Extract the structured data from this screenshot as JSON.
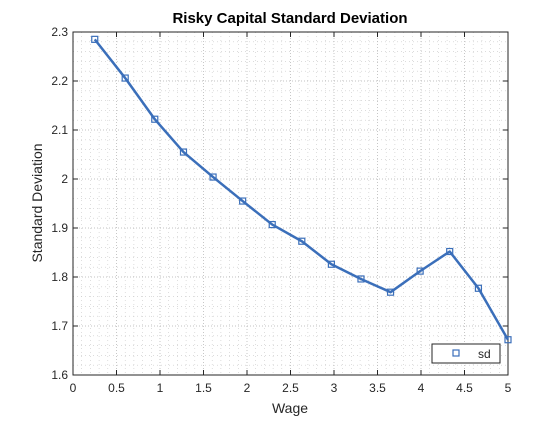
{
  "chart_data": {
    "type": "line",
    "title": "Risky Capital Standard Deviation",
    "xlabel": "Wage",
    "ylabel": "Standard Deviation",
    "xlim": [
      0,
      5
    ],
    "ylim": [
      1.6,
      2.3
    ],
    "x_ticks": [
      "0",
      "0.5",
      "1",
      "1.5",
      "2",
      "2.5",
      "3",
      "3.5",
      "4",
      "4.5",
      "5"
    ],
    "y_ticks": [
      "1.6",
      "1.7",
      "1.8",
      "1.9",
      "2",
      "2.1",
      "2.2",
      "2.3"
    ],
    "grid": true,
    "minor_grid": true,
    "legend_position": "bottom-right",
    "series": [
      {
        "name": "sd",
        "color": "#3b6fba",
        "marker": "square",
        "x": [
          0.25,
          0.6,
          0.94,
          1.27,
          1.61,
          1.95,
          2.29,
          2.63,
          2.97,
          3.31,
          3.65,
          3.99,
          4.33,
          4.66,
          5.0
        ],
        "y": [
          2.285,
          2.206,
          2.122,
          2.055,
          2.004,
          1.955,
          1.907,
          1.873,
          1.826,
          1.796,
          1.769,
          1.812,
          1.852,
          1.777,
          1.672
        ]
      }
    ]
  }
}
